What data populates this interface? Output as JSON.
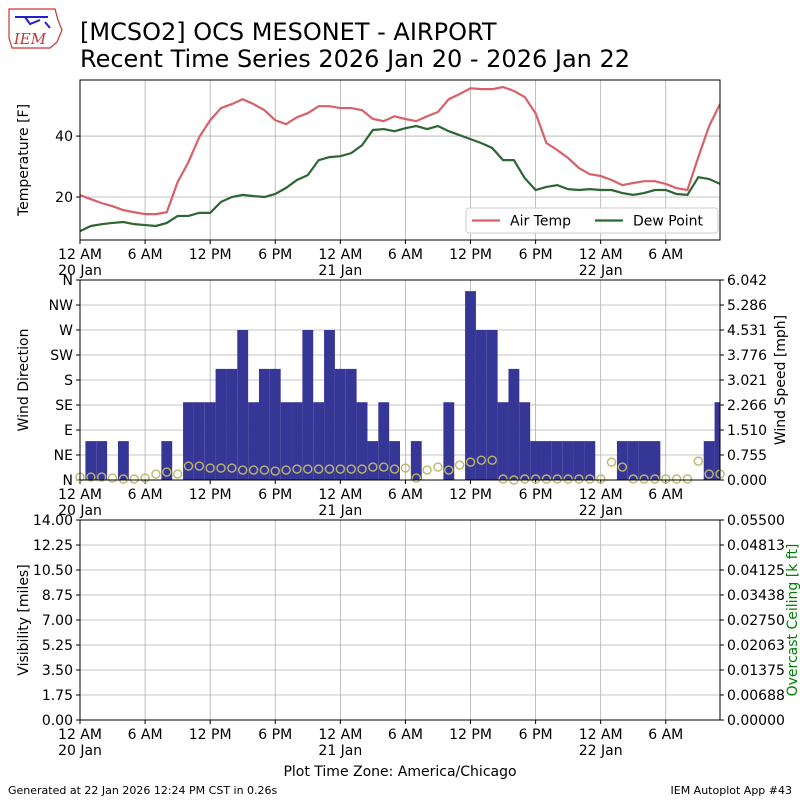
{
  "header": {
    "logo_text": "IEM",
    "title": "[MCSO2] OCS MESONET - AIRPORT",
    "subtitle": "Recent Time Series 2026 Jan 20 - 2026 Jan 22"
  },
  "chart_data": [
    {
      "type": "line",
      "y_label": "Temperature [F]",
      "xlim": [
        0,
        59
      ],
      "ylim": [
        5.9,
        58.4
      ],
      "yticks": [
        20,
        40
      ],
      "grid": true,
      "legend": "lower right",
      "xticks": [
        {
          "value": 0,
          "label": "12 AM"
        },
        {
          "value": 6,
          "label": "6 AM"
        },
        {
          "value": 12,
          "label": "12 PM"
        },
        {
          "value": 18,
          "label": "6 PM"
        },
        {
          "value": 24,
          "label": "12 AM"
        },
        {
          "value": 30,
          "label": "6 AM"
        },
        {
          "value": 36,
          "label": "12 PM"
        },
        {
          "value": 42,
          "label": "6 PM"
        },
        {
          "value": 48,
          "label": "12 AM"
        },
        {
          "value": 54,
          "label": "6 AM"
        }
      ],
      "xtick_sublabels": [
        {
          "value": 0,
          "label": "20 Jan"
        },
        {
          "value": 24,
          "label": "21 Jan"
        },
        {
          "value": 48,
          "label": "22 Jan"
        }
      ],
      "x": [
        0,
        1,
        2,
        3,
        4,
        5,
        6,
        7,
        8,
        9,
        10,
        11,
        12,
        13,
        14,
        15,
        16,
        17,
        18,
        19,
        20,
        21,
        22,
        23,
        24,
        25,
        26,
        27,
        28,
        29,
        30,
        31,
        32,
        33,
        34,
        35,
        36,
        37,
        38,
        39,
        40,
        41,
        42,
        43,
        44,
        45,
        46,
        47,
        48,
        49,
        50,
        51,
        52,
        53,
        54,
        55,
        56,
        57,
        58,
        59
      ],
      "series": [
        {
          "name": "Air Temp",
          "color": "#d9606a",
          "values": [
            20.6,
            19.3,
            18,
            17,
            15.7,
            15,
            14.4,
            14.4,
            15,
            24.9,
            31.5,
            39.7,
            45.2,
            49.2,
            50.5,
            52.1,
            50.5,
            48.5,
            45.2,
            43.9,
            46.2,
            47.5,
            49.8,
            49.8,
            49.2,
            49.2,
            48.5,
            45.6,
            44.9,
            46.5,
            45.6,
            44.9,
            46.5,
            47.9,
            52.1,
            53.8,
            55.7,
            55.4,
            55.4,
            56.1,
            54.8,
            52.8,
            47.5,
            37.7,
            35.4,
            32.8,
            29.5,
            27.5,
            26.9,
            25.6,
            23.9,
            24.6,
            25.2,
            25.2,
            24.3,
            22.9,
            22.3,
            33.1,
            43.3,
            50.5
          ]
        },
        {
          "name": "Dew Point",
          "color": "#2e6633",
          "values": [
            8.8,
            10.5,
            11.1,
            11.5,
            11.8,
            11.1,
            10.8,
            10.5,
            11.5,
            13.8,
            13.8,
            14.8,
            14.8,
            18.4,
            20,
            20.7,
            20.3,
            20,
            21,
            23,
            25.6,
            27.2,
            32.1,
            33.1,
            33.4,
            34.4,
            37,
            42,
            42.3,
            41.6,
            42.6,
            43.3,
            42.3,
            43.3,
            41.6,
            40.3,
            39,
            37.7,
            36.1,
            32.1,
            32.1,
            26.2,
            22.3,
            23.3,
            23.9,
            22.6,
            22.3,
            22.6,
            22.3,
            22.3,
            21.3,
            20.7,
            21.3,
            22.3,
            22.3,
            21,
            20.7,
            26.5,
            25.9,
            24.3
          ]
        }
      ]
    },
    {
      "type": "bar",
      "y_label": "Wind Direction",
      "y2_label": "Wind Speed [mph]",
      "xlim": [
        0,
        59
      ],
      "ylim": [
        0,
        360
      ],
      "y2lim": [
        0,
        6.042
      ],
      "grid": true,
      "yticks": [
        {
          "value": 0,
          "label": "N"
        },
        {
          "value": 45,
          "label": "NE"
        },
        {
          "value": 90,
          "label": "E"
        },
        {
          "value": 135,
          "label": "SE"
        },
        {
          "value": 180,
          "label": "S"
        },
        {
          "value": 225,
          "label": "SW"
        },
        {
          "value": 270,
          "label": "W"
        },
        {
          "value": 315,
          "label": "NW"
        },
        {
          "value": 360,
          "label": "N"
        }
      ],
      "y2ticks": [
        {
          "value": 0,
          "label": "0.000"
        },
        0.755,
        {
          "value": 1.51,
          "label": "1.510"
        },
        2.266,
        3.021,
        3.776,
        4.531,
        5.286,
        6.042
      ],
      "xticks": [
        {
          "value": 0,
          "label": "12 AM"
        },
        {
          "value": 6,
          "label": "6 AM"
        },
        {
          "value": 12,
          "label": "12 PM"
        },
        {
          "value": 18,
          "label": "6 PM"
        },
        {
          "value": 24,
          "label": "12 AM"
        },
        {
          "value": 30,
          "label": "6 AM"
        },
        {
          "value": 36,
          "label": "12 PM"
        },
        {
          "value": 42,
          "label": "6 PM"
        },
        {
          "value": 48,
          "label": "12 AM"
        },
        {
          "value": 54,
          "label": "6 AM"
        }
      ],
      "xtick_sublabels": [
        {
          "value": 0,
          "label": "20 Jan"
        },
        {
          "value": 24,
          "label": "21 Jan"
        },
        {
          "value": 48,
          "label": "22 Jan"
        }
      ],
      "x": [
        0,
        1,
        2,
        3,
        4,
        5,
        6,
        7,
        8,
        9,
        10,
        11,
        12,
        13,
        14,
        15,
        16,
        17,
        18,
        19,
        20,
        21,
        22,
        23,
        24,
        25,
        26,
        27,
        28,
        29,
        30,
        31,
        32,
        33,
        34,
        35,
        36,
        37,
        38,
        39,
        40,
        41,
        42,
        43,
        44,
        45,
        46,
        47,
        48,
        49,
        50,
        51,
        52,
        53,
        54,
        55,
        56,
        57,
        58,
        59
      ],
      "series": [
        {
          "color": "#363696",
          "values": [
            0,
            70,
            70,
            0,
            70,
            0,
            0,
            0,
            70,
            0,
            140,
            140,
            140,
            200,
            200,
            270,
            140,
            200,
            200,
            140,
            140,
            270,
            140,
            270,
            200,
            200,
            140,
            70,
            140,
            70,
            0,
            70,
            0,
            0,
            140,
            0,
            340,
            270,
            270,
            140,
            200,
            140,
            70,
            70,
            70,
            70,
            70,
            70,
            0,
            0,
            70,
            70,
            70,
            70,
            0,
            0,
            0,
            0,
            70,
            140
          ]
        },
        {
          "type": "scatter",
          "axis": "y2",
          "color": "#bdb76b",
          "values": [
            0.09,
            0.09,
            0.09,
            0.06,
            0.03,
            0.03,
            0.06,
            0.18,
            0.24,
            0.18,
            0.42,
            0.42,
            0.36,
            0.36,
            0.36,
            0.3,
            0.3,
            0.3,
            0.27,
            0.3,
            0.33,
            0.33,
            0.33,
            0.33,
            0.33,
            0.33,
            0.33,
            0.39,
            0.39,
            0.33,
            0.36,
            0.06,
            0.3,
            0.39,
            0.3,
            0.45,
            0.54,
            0.6,
            0.6,
            0.03,
            0,
            0.03,
            0.03,
            0.03,
            0.03,
            0.03,
            0.03,
            0.03,
            0.03,
            0.54,
            0.39,
            0.03,
            0.03,
            0.03,
            0.03,
            0.03,
            0.03,
            0.57,
            0.18,
            0.18
          ]
        }
      ]
    },
    {
      "type": "line",
      "y_label": "Visibility [miles]",
      "y2_label": "Overcast Ceiling [k ft]",
      "y2_color": "#008000",
      "xlim": [
        0,
        59
      ],
      "ylim": [
        0,
        14
      ],
      "y2lim": [
        0,
        0.055
      ],
      "grid": true,
      "x_label": "Plot Time Zone: America/Chicago",
      "yticks": [
        {
          "value": 0,
          "label": "0.00"
        },
        1.75,
        {
          "value": 3.5,
          "label": "3.50"
        },
        5.25,
        {
          "value": 7,
          "label": "7.00"
        },
        8.75,
        {
          "value": 10.5,
          "label": "10.50"
        },
        12.25,
        {
          "value": 14,
          "label": "14.00"
        }
      ],
      "y2ticks": [
        {
          "value": 0,
          "label": "0.00000"
        },
        0.00688,
        0.01375,
        0.02063,
        {
          "value": 0.0275,
          "label": "0.02750"
        },
        0.03438,
        0.04125,
        0.04813,
        {
          "value": 0.055,
          "label": "0.05500"
        }
      ],
      "xticks": [
        {
          "value": 0,
          "label": "12 AM"
        },
        {
          "value": 6,
          "label": "6 AM"
        },
        {
          "value": 12,
          "label": "12 PM"
        },
        {
          "value": 18,
          "label": "6 PM"
        },
        {
          "value": 24,
          "label": "12 AM"
        },
        {
          "value": 30,
          "label": "6 AM"
        },
        {
          "value": 36,
          "label": "12 PM"
        },
        {
          "value": 42,
          "label": "6 PM"
        },
        {
          "value": 48,
          "label": "12 AM"
        },
        {
          "value": 54,
          "label": "6 AM"
        }
      ],
      "xtick_sublabels": [
        {
          "value": 0,
          "label": "20 Jan"
        },
        {
          "value": 24,
          "label": "21 Jan"
        },
        {
          "value": 48,
          "label": "22 Jan"
        }
      ]
    }
  ],
  "footer": {
    "left": "Generated at 22 Jan 2026 12:24 PM CST in 0.26s",
    "right": "IEM Autoplot App #43"
  }
}
